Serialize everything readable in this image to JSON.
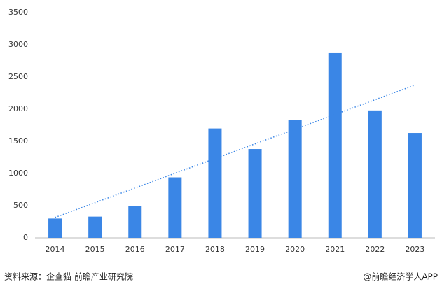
{
  "chart_data": {
    "type": "bar",
    "categories": [
      "2014",
      "2015",
      "2016",
      "2017",
      "2018",
      "2019",
      "2020",
      "2021",
      "2022",
      "2023"
    ],
    "values": [
      300,
      330,
      500,
      940,
      1700,
      1380,
      1830,
      2870,
      1980,
      1630
    ],
    "color": "#3a86e6",
    "ylim": [
      0,
      3500
    ],
    "yticks": [
      0,
      500,
      1000,
      1500,
      2000,
      2500,
      3000,
      3500
    ],
    "grid": false,
    "trendline": true
  },
  "footer": {
    "source": "资料来源：企查猫 前瞻产业研究院",
    "credit": "@前瞻经济学人APP"
  }
}
